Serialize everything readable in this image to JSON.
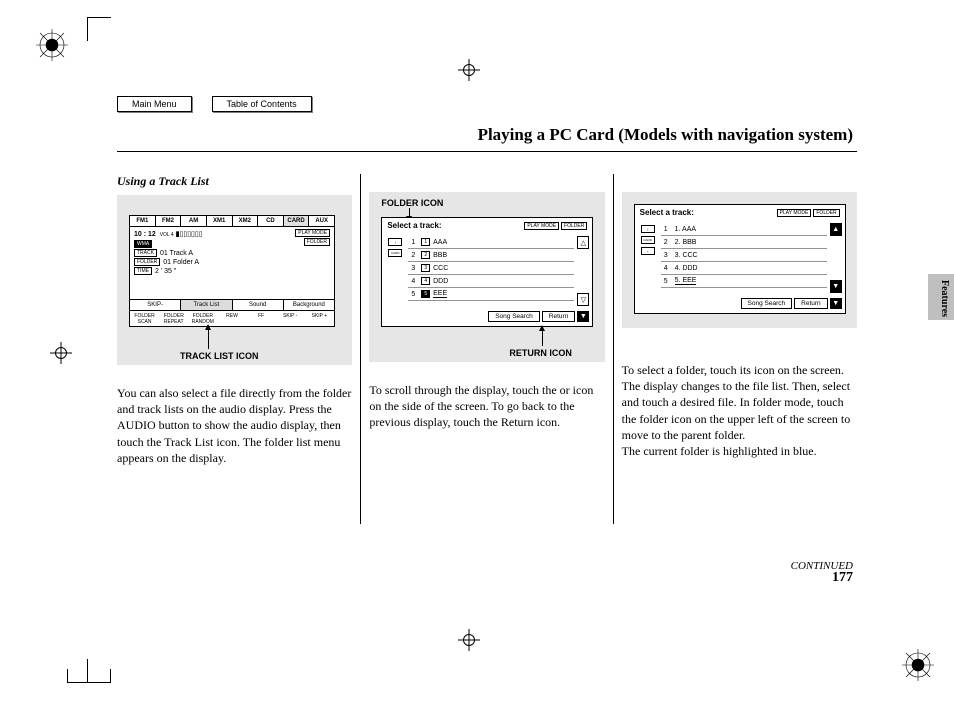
{
  "nav": {
    "main_menu": "Main Menu",
    "toc": "Table of Contents"
  },
  "title": "Playing a PC Card (Models with navigation system)",
  "subheading": "Using a Track List",
  "labels": {
    "folder_icon": "FOLDER ICON",
    "track_list_icon": "TRACK LIST ICON",
    "return_icon": "RETURN ICON"
  },
  "side_tab": "Features",
  "continued": "CONTINUED",
  "page_number": "177",
  "col1_text": "You can also select a file directly from the folder and track lists on the audio display. Press the AUDIO button to show the audio display, then touch the Track List icon. The folder list menu appears on the display.",
  "col2_text": "To scroll through the display, touch the      or      icon on the side of the screen. To go back to the previous display, touch the Return icon.",
  "col3_text_a": "To select a folder, touch its icon on the screen. The display changes to the file list. Then, select and touch a desired file. In folder mode, touch the folder icon on the upper left of the screen to move to the parent folder.",
  "col3_text_b": "The current folder is highlighted in blue.",
  "panel1": {
    "tabs": [
      "FM1",
      "FM2",
      "AM",
      "XM1",
      "XM2",
      "CD",
      "CARD",
      "AUX"
    ],
    "time": "10 : 12",
    "vol": "VOL 4",
    "wma": "WMA",
    "track_tag": "TRACK",
    "track_line": "01  Track  A",
    "folder_tag": "FOLDER",
    "folder_line": "01  Folder  A",
    "time_tag": "TIME",
    "time_line": "2 ' 35 \"",
    "right_badges": [
      "PLAY MODE",
      "FOLDER"
    ],
    "buttons": [
      "SKIP-",
      "Track  List",
      "Sound",
      "Background"
    ],
    "foot": [
      "FOLDER SCAN",
      "FOLDER REPEAT",
      "FOLDER RANDOM",
      "REW",
      "FF",
      "SKIP -",
      "SKIP +"
    ]
  },
  "panel2": {
    "header": "Select a track:",
    "badges": [
      "PLAY MODE",
      "FOLDER"
    ],
    "leftcards": [
      "↑",
      "CARD"
    ],
    "rows": [
      {
        "n": "1",
        "chip": "1",
        "txt": "AAA"
      },
      {
        "n": "2",
        "chip": "2",
        "txt": "BBB"
      },
      {
        "n": "3",
        "chip": "3",
        "txt": "CCC"
      },
      {
        "n": "4",
        "chip": "4",
        "txt": "DDD"
      },
      {
        "n": "5",
        "chip": "5",
        "txt": "EEE",
        "sel": true
      }
    ],
    "song_search": "Song Search",
    "return": "Return"
  },
  "panel3": {
    "header": "Select a track:",
    "badges": [
      "PLAY MODE",
      "FOLDER"
    ],
    "leftcards": [
      "↑",
      "CARD",
      "↑"
    ],
    "rows": [
      {
        "n": "1",
        "txt": "1. AAA"
      },
      {
        "n": "2",
        "txt": "2. BBB"
      },
      {
        "n": "3",
        "txt": "3. CCC"
      },
      {
        "n": "4",
        "txt": "4. DDD"
      },
      {
        "n": "5",
        "txt": "5. EEE",
        "sel": true
      }
    ],
    "song_search": "Song Search",
    "return": "Return"
  },
  "colors": {
    "gray_box": "#e6e6e6",
    "side_tab": "#bfbfbf"
  }
}
